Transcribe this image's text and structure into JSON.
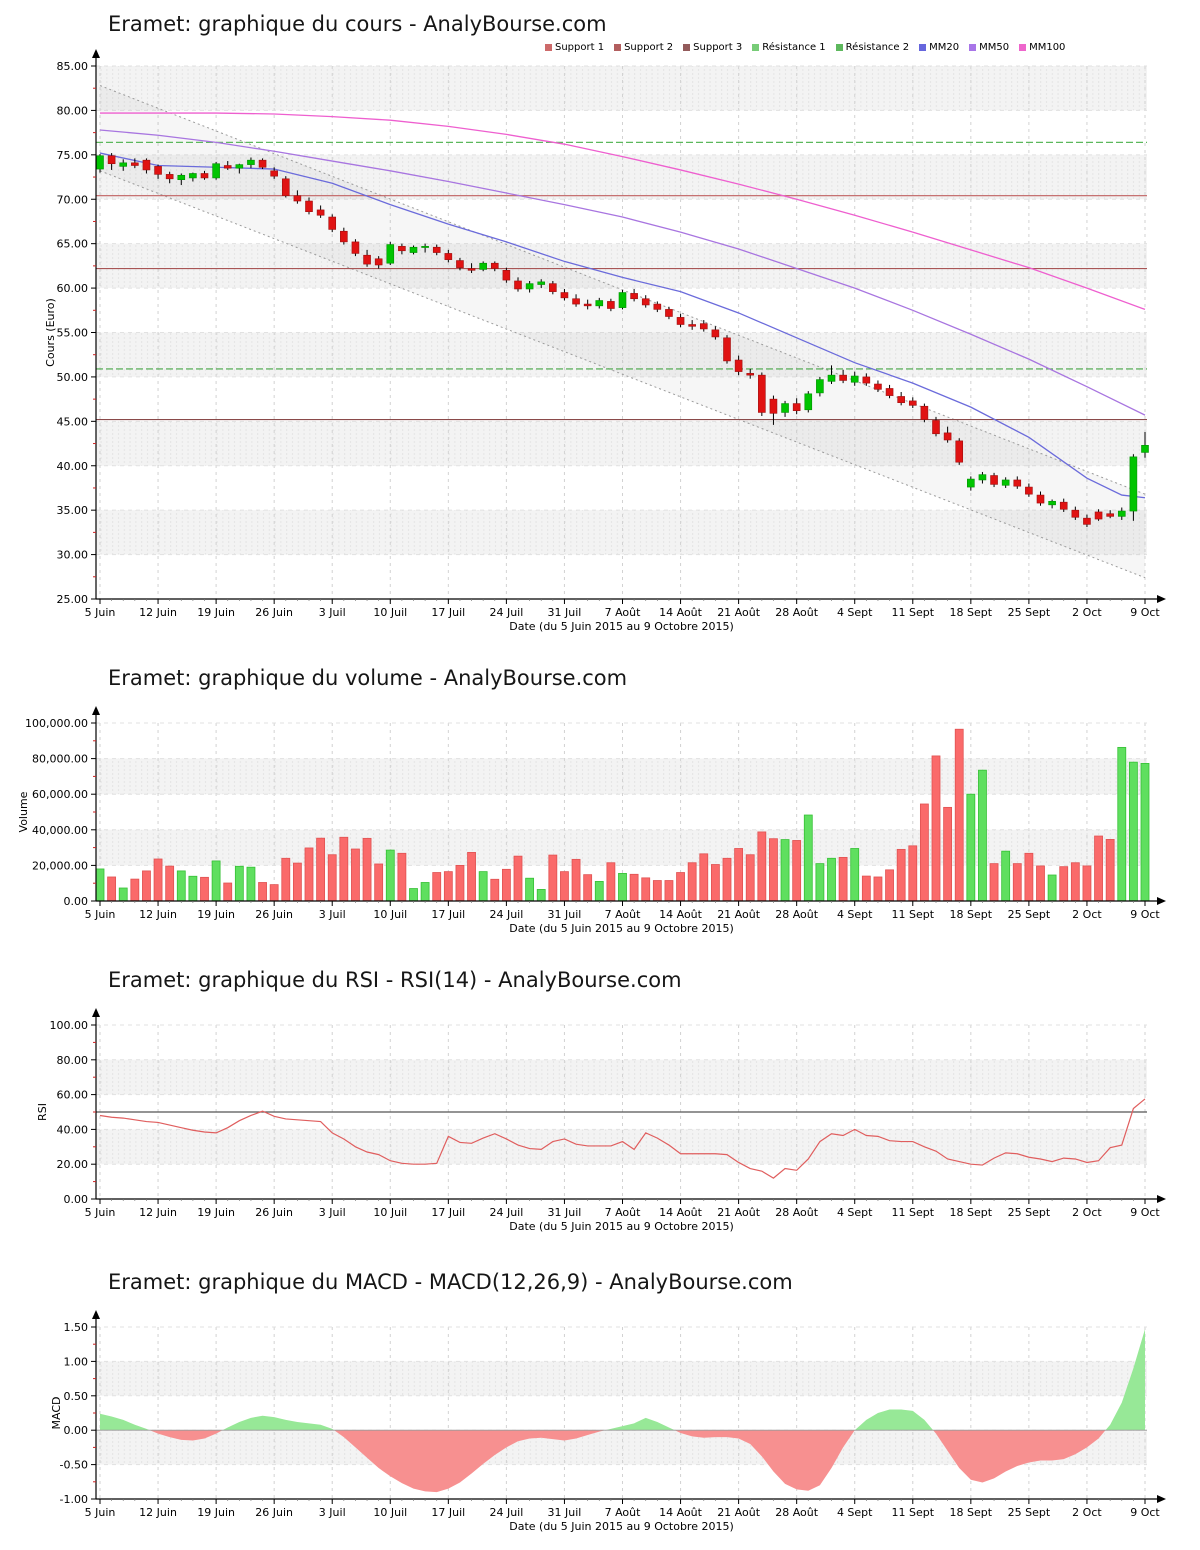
{
  "site": "AnalyBourse.com",
  "instrument": "Eramet",
  "legend": {
    "items": [
      {
        "label": "Support 1",
        "color": "#cd6a6a"
      },
      {
        "label": "Support 2",
        "color": "#b25e5e"
      },
      {
        "label": "Support 3",
        "color": "#935b5b"
      },
      {
        "label": "Résistance 1",
        "color": "#77cc77"
      },
      {
        "label": "Résistance 2",
        "color": "#5db85d"
      },
      {
        "label": "MM20",
        "color": "#6666dd"
      },
      {
        "label": "MM50",
        "color": "#a875e8"
      },
      {
        "label": "MM100",
        "color": "#ee66cc"
      }
    ]
  },
  "chart_data": [
    {
      "id": "price",
      "type": "candlestick",
      "title": "Eramet: graphique du cours - AnalyBourse.com",
      "ylabel": "Cours (Euro)",
      "xlabel": "Date (du 5 Juin 2015 au 9 Octobre 2015)",
      "ylim": [
        25,
        85
      ],
      "ytick_step": 5,
      "ytick_decimals": 2,
      "gray_bands": [
        [
          30,
          35
        ],
        [
          40,
          45
        ],
        [
          50,
          55
        ],
        [
          60,
          65
        ],
        [
          70,
          75
        ],
        [
          80,
          85
        ]
      ],
      "x_tick_labels": [
        "5 Juin",
        "12 Juin",
        "19 Juin",
        "26 Juin",
        "3 Juil",
        "10 Juil",
        "17 Juil",
        "24 Juil",
        "31 Juil",
        "7 Août",
        "14 Août",
        "21 Août",
        "28 Août",
        "4 Sept",
        "11 Sept",
        "18 Sept",
        "25 Sept",
        "2 Oct",
        "9 Oct"
      ],
      "days": 91,
      "up_color": "#00c400",
      "down_color": "#e01212",
      "wick_color": "#000000",
      "levels": [
        {
          "name": "Résistance 1",
          "value": 76.4,
          "color": "#5cb85c",
          "dash": "7,3"
        },
        {
          "name": "Résistance 2",
          "value": 50.9,
          "color": "#46a546",
          "dash": "7,3"
        },
        {
          "name": "Support 1",
          "value": 70.4,
          "color": "#c06060",
          "dash": ""
        },
        {
          "name": "Support 2",
          "value": 62.2,
          "color": "#a85555",
          "dash": ""
        },
        {
          "name": "Support 3",
          "value": 45.2,
          "color": "#8a4a4a",
          "dash": ""
        }
      ],
      "regression_channel": {
        "upper": [
          82.8,
          36.8
        ],
        "lower": [
          73.2,
          27.4
        ]
      },
      "moving_averages": [
        {
          "name": "MM20",
          "color": "#6b6bdb",
          "x": [
            0,
            5,
            10,
            15,
            20,
            25,
            30,
            35,
            40,
            45,
            50,
            55,
            60,
            65,
            70,
            75,
            80,
            85,
            88,
            90
          ],
          "values": [
            75.2,
            73.8,
            73.6,
            73.4,
            71.8,
            69.4,
            67.2,
            65.2,
            63.0,
            61.2,
            59.6,
            57.2,
            54.4,
            51.6,
            49.3,
            46.6,
            43.2,
            38.6,
            36.7,
            36.4
          ]
        },
        {
          "name": "MM50",
          "color": "#a875e0",
          "x": [
            0,
            5,
            10,
            15,
            20,
            25,
            30,
            35,
            40,
            45,
            50,
            55,
            60,
            65,
            70,
            75,
            80,
            85,
            90
          ],
          "values": [
            77.8,
            77.2,
            76.4,
            75.4,
            74.3,
            73.2,
            72.0,
            70.7,
            69.4,
            68.0,
            66.3,
            64.4,
            62.2,
            60.0,
            57.5,
            54.8,
            52.0,
            48.9,
            45.7
          ]
        },
        {
          "name": "MM100",
          "color": "#ee5fcf",
          "x": [
            0,
            5,
            10,
            15,
            20,
            25,
            30,
            35,
            40,
            45,
            50,
            55,
            60,
            65,
            70,
            75,
            80,
            85,
            90
          ],
          "values": [
            79.7,
            79.7,
            79.7,
            79.6,
            79.3,
            78.9,
            78.2,
            77.3,
            76.2,
            74.8,
            73.3,
            71.7,
            70.0,
            68.2,
            66.3,
            64.3,
            62.3,
            60.0,
            57.6
          ]
        }
      ],
      "ohlc": [
        [
          73.4,
          75.1,
          73.0,
          74.9
        ],
        [
          74.9,
          75.2,
          73.3,
          74.0
        ],
        [
          73.7,
          74.5,
          73.2,
          74.1
        ],
        [
          74.1,
          74.6,
          73.5,
          73.8
        ],
        [
          74.4,
          74.6,
          72.9,
          73.3
        ],
        [
          73.7,
          73.9,
          72.3,
          72.8
        ],
        [
          72.8,
          73.1,
          71.8,
          72.3
        ],
        [
          72.2,
          72.9,
          71.6,
          72.7
        ],
        [
          72.4,
          73.0,
          72.0,
          72.9
        ],
        [
          72.9,
          73.2,
          72.2,
          72.4
        ],
        [
          72.4,
          74.2,
          72.2,
          74.0
        ],
        [
          73.8,
          74.3,
          73.3,
          73.5
        ],
        [
          73.5,
          74.0,
          72.9,
          73.9
        ],
        [
          73.9,
          74.7,
          73.5,
          74.4
        ],
        [
          74.4,
          74.6,
          73.4,
          73.6
        ],
        [
          73.2,
          73.6,
          72.3,
          72.6
        ],
        [
          72.3,
          72.6,
          70.2,
          70.4
        ],
        [
          70.4,
          71.0,
          69.5,
          69.8
        ],
        [
          69.8,
          70.2,
          68.3,
          68.6
        ],
        [
          68.8,
          69.3,
          67.9,
          68.2
        ],
        [
          68.0,
          68.3,
          66.3,
          66.6
        ],
        [
          66.4,
          66.8,
          64.9,
          65.2
        ],
        [
          65.2,
          65.5,
          63.6,
          63.9
        ],
        [
          63.7,
          64.3,
          62.4,
          62.7
        ],
        [
          63.3,
          63.6,
          62.2,
          62.6
        ],
        [
          62.8,
          65.2,
          62.6,
          64.9
        ],
        [
          64.7,
          65.0,
          63.8,
          64.2
        ],
        [
          64.0,
          64.8,
          63.8,
          64.6
        ],
        [
          64.6,
          65.0,
          64.0,
          64.7
        ],
        [
          64.6,
          64.9,
          63.7,
          64.0
        ],
        [
          63.9,
          64.3,
          62.9,
          63.2
        ],
        [
          63.1,
          63.4,
          62.0,
          62.3
        ],
        [
          62.2,
          62.8,
          61.7,
          62.0
        ],
        [
          62.1,
          63.0,
          61.9,
          62.8
        ],
        [
          62.8,
          63.0,
          61.9,
          62.2
        ],
        [
          62.0,
          62.3,
          60.6,
          60.9
        ],
        [
          60.8,
          61.2,
          59.6,
          59.9
        ],
        [
          59.9,
          60.8,
          59.5,
          60.5
        ],
        [
          60.4,
          61.0,
          60.0,
          60.7
        ],
        [
          60.5,
          60.8,
          59.3,
          59.6
        ],
        [
          59.5,
          59.9,
          58.6,
          58.9
        ],
        [
          58.8,
          59.3,
          57.9,
          58.2
        ],
        [
          58.2,
          58.7,
          57.6,
          58.0
        ],
        [
          58.0,
          58.9,
          57.7,
          58.6
        ],
        [
          58.5,
          58.8,
          57.4,
          57.7
        ],
        [
          57.8,
          59.8,
          57.6,
          59.5
        ],
        [
          59.4,
          59.9,
          58.5,
          58.8
        ],
        [
          58.8,
          59.2,
          57.8,
          58.1
        ],
        [
          58.2,
          58.5,
          57.3,
          57.6
        ],
        [
          57.6,
          57.9,
          56.5,
          56.8
        ],
        [
          56.7,
          57.1,
          55.6,
          55.9
        ],
        [
          55.9,
          56.4,
          55.3,
          55.7
        ],
        [
          56.0,
          56.4,
          55.1,
          55.4
        ],
        [
          55.3,
          55.7,
          54.2,
          54.5
        ],
        [
          54.4,
          54.7,
          51.5,
          51.8
        ],
        [
          51.9,
          52.4,
          50.2,
          50.6
        ],
        [
          50.4,
          50.9,
          49.8,
          50.2
        ],
        [
          50.2,
          50.5,
          45.6,
          46.0
        ],
        [
          47.5,
          47.9,
          44.6,
          45.9
        ],
        [
          46.0,
          47.3,
          45.5,
          47.0
        ],
        [
          47.0,
          47.6,
          45.8,
          46.2
        ],
        [
          46.3,
          48.4,
          46.0,
          48.1
        ],
        [
          48.2,
          50.0,
          47.8,
          49.7
        ],
        [
          49.5,
          51.3,
          49.2,
          50.2
        ],
        [
          50.2,
          50.8,
          49.3,
          49.6
        ],
        [
          49.4,
          50.6,
          49.0,
          50.1
        ],
        [
          50.0,
          50.4,
          49.0,
          49.3
        ],
        [
          49.2,
          49.6,
          48.3,
          48.6
        ],
        [
          48.7,
          49.1,
          47.6,
          47.9
        ],
        [
          47.8,
          48.3,
          46.8,
          47.1
        ],
        [
          47.3,
          47.7,
          46.5,
          46.8
        ],
        [
          46.7,
          47.0,
          44.9,
          45.2
        ],
        [
          45.1,
          45.5,
          43.3,
          43.6
        ],
        [
          43.7,
          44.4,
          42.6,
          42.9
        ],
        [
          42.8,
          43.1,
          40.1,
          40.4
        ],
        [
          37.6,
          38.8,
          37.2,
          38.5
        ],
        [
          38.4,
          39.3,
          38.0,
          39.0
        ],
        [
          38.9,
          39.2,
          37.6,
          37.9
        ],
        [
          37.8,
          38.7,
          37.5,
          38.4
        ],
        [
          38.4,
          38.8,
          37.4,
          37.7
        ],
        [
          37.6,
          38.0,
          36.5,
          36.8
        ],
        [
          36.7,
          37.1,
          35.5,
          35.8
        ],
        [
          35.6,
          36.2,
          35.2,
          36.0
        ],
        [
          35.9,
          36.3,
          34.8,
          35.1
        ],
        [
          35.0,
          35.4,
          33.9,
          34.2
        ],
        [
          34.1,
          34.5,
          33.1,
          33.4
        ],
        [
          34.8,
          35.1,
          33.8,
          34.0
        ],
        [
          34.6,
          35.0,
          34.1,
          34.3
        ],
        [
          34.3,
          35.3,
          33.9,
          34.9
        ],
        [
          34.9,
          41.3,
          33.8,
          41.0
        ],
        [
          41.5,
          43.8,
          40.9,
          42.3
        ]
      ]
    },
    {
      "id": "volume",
      "type": "bar",
      "title": "Eramet: graphique du volume - AnalyBourse.com",
      "ylabel": "Volume",
      "xlabel": "Date (du 5 Juin 2015 au 9 Octobre 2015)",
      "ylim": [
        0,
        100000
      ],
      "ytick_step": 20000,
      "ytick_decimals": 2,
      "gray_bands": [
        [
          20000,
          40000
        ],
        [
          60000,
          80000
        ]
      ],
      "x_tick_labels": [
        "5 Juin",
        "12 Juin",
        "19 Juin",
        "26 Juin",
        "3 Juil",
        "10 Juil",
        "17 Juil",
        "24 Juil",
        "31 Juil",
        "7 Août",
        "14 Août",
        "21 Août",
        "28 Août",
        "4 Sept",
        "11 Sept",
        "18 Sept",
        "25 Sept",
        "2 Oct",
        "9 Oct"
      ],
      "days": 91,
      "up_color": "#5fdf5f",
      "down_color": "#fa6a6a",
      "values": [
        18000,
        13500,
        7300,
        12300,
        16900,
        23600,
        19600,
        16900,
        13900,
        13300,
        22500,
        10100,
        19500,
        19000,
        10400,
        9200,
        24000,
        21300,
        29800,
        35300,
        26000,
        35800,
        29200,
        35200,
        20800,
        28600,
        26800,
        7000,
        10400,
        16000,
        16500,
        20000,
        27300,
        16500,
        12200,
        17800,
        25200,
        12800,
        6500,
        25800,
        16500,
        23400,
        14800,
        11000,
        21500,
        15500,
        15000,
        13000,
        11500,
        11500,
        16000,
        21500,
        26500,
        20500,
        24000,
        29500,
        26000,
        38800,
        35000,
        34500,
        34000,
        48300,
        21000,
        24000,
        24500,
        29500,
        14000,
        13500,
        17500,
        29000,
        31000,
        54500,
        81500,
        52600,
        96500,
        60000,
        73500,
        21000,
        28000,
        21000,
        26800,
        19700,
        14600,
        19300,
        21500,
        19700,
        36500,
        34600,
        86300,
        78000,
        77300
      ]
    },
    {
      "id": "rsi",
      "type": "line",
      "title": "Eramet: graphique du RSI - RSI(14) - AnalyBourse.com",
      "ylabel": "RSI",
      "xlabel": "Date (du 5 Juin 2015 au 9 Octobre 2015)",
      "ylim": [
        0,
        100
      ],
      "ytick_step": 20,
      "ytick_decimals": 2,
      "gray_bands": [
        [
          20,
          40
        ],
        [
          60,
          80
        ]
      ],
      "x_tick_labels": [
        "5 Juin",
        "12 Juin",
        "19 Juin",
        "26 Juin",
        "3 Juil",
        "10 Juil",
        "17 Juil",
        "24 Juil",
        "31 Juil",
        "7 Août",
        "14 Août",
        "21 Août",
        "28 Août",
        "4 Sept",
        "11 Sept",
        "18 Sept",
        "25 Sept",
        "2 Oct",
        "9 Oct"
      ],
      "days": 91,
      "line_color": "#e05e5e",
      "levels": [
        {
          "name": "Niveau 50",
          "value": 50,
          "color": "#555555",
          "dash": ""
        }
      ],
      "values": [
        48,
        47,
        46.5,
        45.5,
        44.5,
        44,
        42.5,
        41,
        39.5,
        38.5,
        38,
        41,
        45,
        48,
        50.5,
        47.5,
        46,
        45.5,
        45,
        44.5,
        38,
        34.5,
        30,
        27,
        25.5,
        22,
        20.5,
        20,
        20,
        20.5,
        36,
        32.5,
        32,
        35,
        37.5,
        34.5,
        31,
        29,
        28.5,
        33,
        34.5,
        31.5,
        30.5,
        30.5,
        30.5,
        33,
        28.5,
        38,
        35,
        31,
        26,
        26,
        26,
        26,
        25.5,
        21,
        17.5,
        16,
        12,
        17.5,
        16.5,
        23,
        33,
        37.5,
        36.5,
        40,
        36.5,
        36,
        33.5,
        33,
        33,
        30,
        27.5,
        23,
        21.5,
        20,
        19.5,
        23.5,
        26.5,
        26,
        24,
        23,
        21.5,
        23.5,
        23,
        21,
        22,
        29.5,
        31,
        52,
        57.5
      ]
    },
    {
      "id": "macd",
      "type": "area",
      "title": "Eramet: graphique du MACD - MACD(12,26,9) - AnalyBourse.com",
      "ylabel": "MACD",
      "xlabel": "Date (du 5 Juin 2015 au 9 Octobre 2015)",
      "ylim": [
        -1.0,
        1.5
      ],
      "ytick_step": 0.5,
      "ytick_decimals": 2,
      "gray_bands": [
        [
          -0.5,
          0
        ],
        [
          0.5,
          1.0
        ]
      ],
      "x_tick_labels": [
        "5 Juin",
        "12 Juin",
        "19 Juin",
        "26 Juin",
        "3 Juil",
        "10 Juil",
        "17 Juil",
        "24 Juil",
        "31 Juil",
        "7 Août",
        "14 Août",
        "21 Août",
        "28 Août",
        "4 Sept",
        "11 Sept",
        "18 Sept",
        "25 Sept",
        "2 Oct",
        "9 Oct"
      ],
      "days": 91,
      "pos_color": "#97e897",
      "neg_color": "#f79090",
      "values": [
        0.24,
        0.2,
        0.15,
        0.08,
        0.02,
        -0.05,
        -0.1,
        -0.14,
        -0.15,
        -0.12,
        -0.05,
        0.04,
        0.12,
        0.18,
        0.21,
        0.19,
        0.15,
        0.12,
        0.1,
        0.08,
        0.02,
        -0.1,
        -0.25,
        -0.4,
        -0.55,
        -0.67,
        -0.77,
        -0.85,
        -0.89,
        -0.9,
        -0.85,
        -0.76,
        -0.63,
        -0.49,
        -0.36,
        -0.25,
        -0.16,
        -0.12,
        -0.11,
        -0.13,
        -0.15,
        -0.12,
        -0.07,
        -0.02,
        0.02,
        0.06,
        0.1,
        0.18,
        0.12,
        0.04,
        -0.04,
        -0.09,
        -0.11,
        -0.1,
        -0.1,
        -0.12,
        -0.2,
        -0.38,
        -0.6,
        -0.78,
        -0.86,
        -0.88,
        -0.8,
        -0.55,
        -0.25,
        0.0,
        0.15,
        0.25,
        0.3,
        0.3,
        0.28,
        0.15,
        -0.05,
        -0.3,
        -0.55,
        -0.72,
        -0.76,
        -0.7,
        -0.6,
        -0.52,
        -0.47,
        -0.44,
        -0.44,
        -0.42,
        -0.35,
        -0.25,
        -0.12,
        0.08,
        0.4,
        0.9,
        1.47
      ]
    }
  ]
}
